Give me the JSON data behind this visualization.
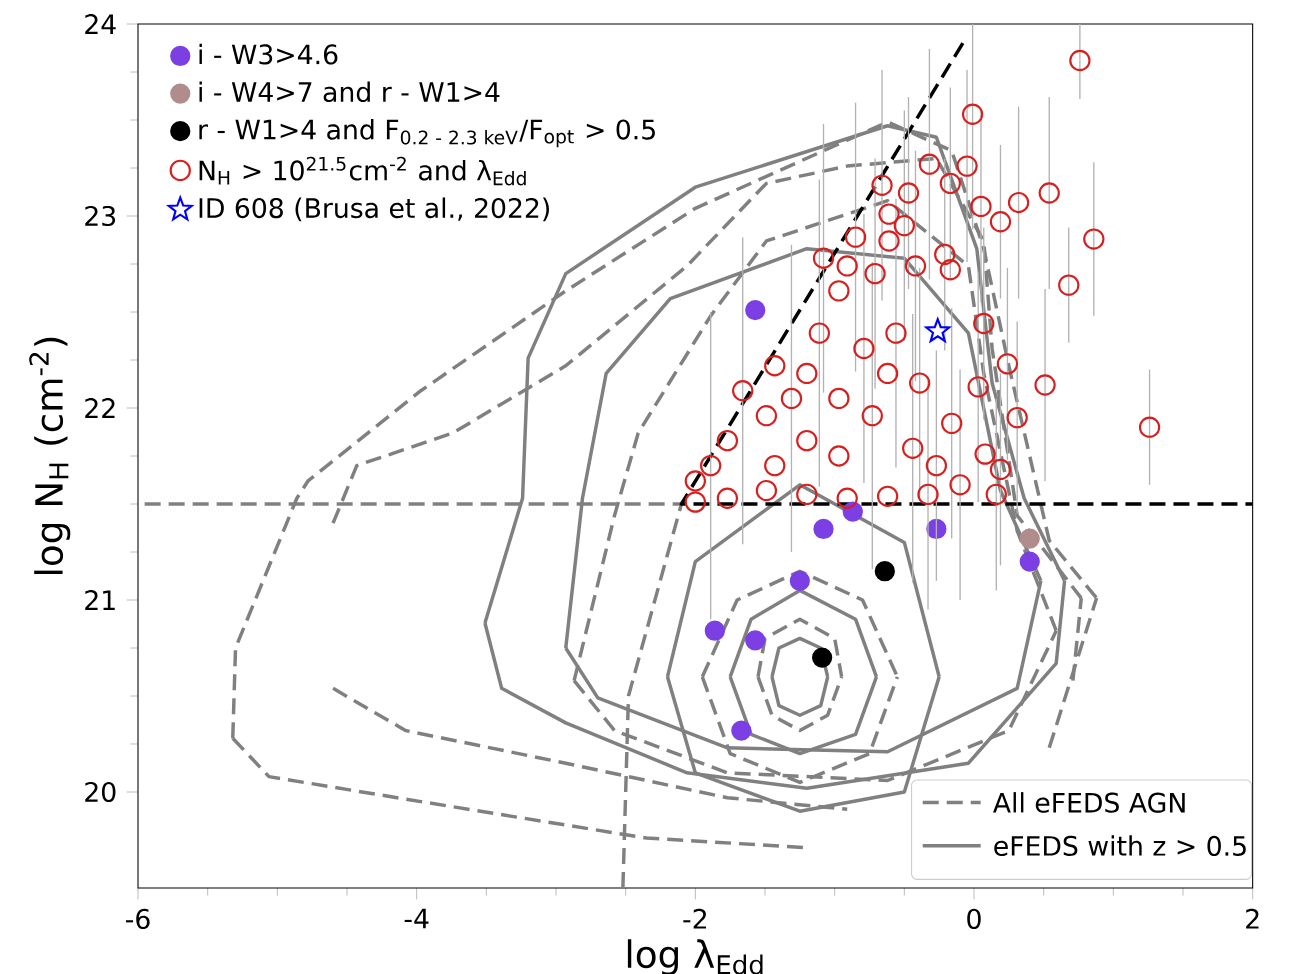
{
  "chart_data": {
    "type": "scatter",
    "xlabel": "log λ$_{Edd}$",
    "ylabel": "log N$_{H}$ (cm$^{-2}$)",
    "xlim": [
      -6,
      2
    ],
    "ylim": [
      19.5,
      24
    ],
    "xticks": [
      -6,
      -4,
      -2,
      0,
      2
    ],
    "yticks": [
      20,
      21,
      22,
      23,
      24
    ],
    "grid": false,
    "legend": "top left",
    "series": [
      {
        "name": "All eFEDS AGN",
        "type": "line",
        "line_style": "dashed",
        "color": "#808080",
        "x": [
          -5.32,
          -5.3,
          -4.86,
          -4.78,
          -3.97,
          -2.93,
          -2.0,
          -0.62,
          -0.16,
          0.07,
          0.25,
          0.54,
          0.88
        ],
        "values": [
          20.28,
          20.75,
          21.53,
          21.62,
          22.09,
          22.61,
          23.04,
          23.49,
          23.34,
          22.83,
          22.22,
          21.31,
          21.01
        ]
      },
      {
        "type": "line",
        "line_style": "dashed",
        "color": "#808080",
        "x": [
          -5.32,
          -5.06,
          -3.97,
          -2.35,
          -1.2,
          -0.33,
          0.54,
          0.88
        ],
        "values": [
          20.28,
          20.08,
          19.95,
          19.76,
          19.71,
          null,
          20.23,
          21.01
        ]
      },
      {
        "type": "line",
        "line_style": "dashed",
        "color": "#808080",
        "x": [
          -4.6,
          -4.43,
          -3.74,
          -2.93,
          -2.06,
          -1.49,
          -0.91,
          -0.27,
          0.07,
          0.13,
          0.31,
          0.77
        ],
        "values": [
          21.4,
          21.7,
          21.87,
          22.22,
          22.74,
          23.17,
          23.26,
          23.3,
          22.87,
          22.31,
          21.44,
          21.01
        ]
      },
      {
        "type": "line",
        "line_style": "dashed",
        "color": "#808080",
        "x": [
          -4.6,
          -4.08,
          -2.93,
          -1.77,
          -0.91,
          -0.04,
          0.71,
          0.77
        ],
        "values": [
          20.54,
          20.32,
          20.15,
          19.97,
          19.91,
          null,
          20.58,
          21.01
        ]
      },
      {
        "type": "line",
        "line_style": "dashed",
        "color": "#808080",
        "x": [
          -2.87,
          -2.58,
          -2.41,
          -1.89,
          -1.49,
          -0.62,
          -0.04,
          0.07,
          0.31,
          0.59
        ],
        "values": [
          20.58,
          21.44,
          21.87,
          22.48,
          22.87,
          23.08,
          22.74,
          22.18,
          21.36,
          20.84
        ]
      },
      {
        "type": "line",
        "line_style": "dashed",
        "color": "#808080",
        "x": [
          -2.87,
          -2.58,
          -1.77,
          -0.62,
          0.25,
          0.59
        ],
        "values": [
          20.58,
          20.32,
          20.1,
          20.06,
          20.32,
          20.84
        ]
      },
      {
        "type": "line",
        "line_style": "dashed",
        "color": "#808080",
        "x": [
          -1.95,
          -1.7,
          -1.25,
          -0.8,
          -0.55
        ],
        "values": [
          20.6,
          21.0,
          21.15,
          21.0,
          20.6
        ]
      },
      {
        "type": "line",
        "line_style": "dashed",
        "color": "#808080",
        "x": [
          -1.95,
          -1.75,
          -1.25,
          -0.75,
          -0.55
        ],
        "values": [
          20.6,
          20.2,
          20.05,
          20.2,
          20.6
        ]
      },
      {
        "type": "line",
        "line_style": "dashed",
        "color": "#808080",
        "x": [
          -1.55,
          -1.5,
          -1.25,
          -1.0,
          -0.95
        ],
        "values": [
          20.6,
          20.8,
          20.9,
          20.8,
          20.6
        ]
      },
      {
        "type": "line",
        "line_style": "dashed",
        "color": "#808080",
        "x": [
          -1.55,
          -1.45,
          -1.25,
          -1.05,
          -0.95
        ],
        "values": [
          20.6,
          20.4,
          20.32,
          20.4,
          20.6
        ]
      },
      {
        "name": "eFEDS with z > 0.5",
        "type": "line",
        "line_style": "solid",
        "color": "#808080",
        "x": [
          -3.51,
          -3.24,
          -3.2,
          -2.93,
          -2.0,
          -0.62,
          -0.27,
          0.02,
          0.13,
          0.36,
          0.65
        ],
        "values": [
          20.88,
          21.53,
          22.26,
          22.7,
          23.15,
          23.47,
          23.41,
          22.83,
          22.13,
          21.53,
          21.1
        ]
      },
      {
        "type": "line",
        "line_style": "solid",
        "color": "#808080",
        "x": [
          -3.51,
          -3.39,
          -2.93,
          -2.06,
          -1.2,
          -0.04,
          0.59,
          0.65
        ],
        "values": [
          20.88,
          20.54,
          20.36,
          20.1,
          20.02,
          20.15,
          20.67,
          21.1
        ]
      },
      {
        "type": "line",
        "line_style": "solid",
        "color": "#808080",
        "x": [
          -2.93,
          -2.81,
          -2.64,
          -2.18,
          -1.2,
          -0.5,
          -0.04,
          0.19,
          0.48
        ],
        "values": [
          20.75,
          21.53,
          22.18,
          22.57,
          22.83,
          22.78,
          22.39,
          21.57,
          21.1
        ]
      },
      {
        "type": "line",
        "line_style": "solid",
        "color": "#808080",
        "x": [
          -2.93,
          -2.7,
          -1.77,
          -0.62,
          0.31,
          0.48
        ],
        "values": [
          20.75,
          20.49,
          20.23,
          20.21,
          20.54,
          21.1
        ]
      },
      {
        "type": "line",
        "line_style": "solid",
        "color": "#808080",
        "x": [
          -2.2,
          -2.0,
          -1.25,
          -0.5,
          -0.25
        ],
        "values": [
          20.6,
          21.2,
          21.6,
          21.3,
          20.6
        ]
      },
      {
        "type": "line",
        "line_style": "solid",
        "color": "#808080",
        "x": [
          -2.2,
          -2.0,
          -1.25,
          -0.5,
          -0.25
        ],
        "values": [
          20.6,
          20.1,
          19.9,
          20.0,
          20.6
        ]
      },
      {
        "type": "line",
        "line_style": "solid",
        "color": "#808080",
        "x": [
          -1.75,
          -1.6,
          -1.25,
          -0.85,
          -0.7
        ],
        "values": [
          20.6,
          20.9,
          21.05,
          20.9,
          20.6
        ]
      },
      {
        "type": "line",
        "line_style": "solid",
        "color": "#808080",
        "x": [
          -1.75,
          -1.6,
          -1.25,
          -0.85,
          -0.7
        ],
        "values": [
          20.6,
          20.3,
          20.2,
          20.3,
          20.6
        ]
      },
      {
        "type": "line",
        "line_style": "solid",
        "color": "#808080",
        "x": [
          -1.45,
          -1.4,
          -1.25,
          -1.1,
          -1.05
        ],
        "values": [
          20.6,
          20.75,
          20.8,
          20.75,
          20.6
        ]
      },
      {
        "type": "line",
        "line_style": "solid",
        "color": "#808080",
        "x": [
          -1.45,
          -1.4,
          -1.25,
          -1.1,
          -1.05
        ],
        "values": [
          20.6,
          20.45,
          20.4,
          20.45,
          20.6
        ]
      },
      {
        "type": "line",
        "line_style": "dashed",
        "color": "#808080",
        "x": [
          -2.52,
          -2.48,
          -2.1,
          -6
        ],
        "values": [
          19.5,
          20.5,
          21.5,
          21.5
        ]
      },
      {
        "type": "line",
        "line_style": "dashed",
        "color": "#000000",
        "x": [
          -0.08,
          -2.1,
          2.0
        ],
        "values": [
          23.9,
          21.5,
          21.5
        ]
      },
      {
        "name": "i - W3>4.6",
        "marker": "circle",
        "color": "#7b3fe4",
        "x": [
          -1.57,
          -1.08,
          -0.87,
          -0.27,
          -1.25,
          -1.86,
          -1.57,
          -1.67,
          0.4
        ],
        "values": [
          22.51,
          21.37,
          21.46,
          21.37,
          21.1,
          20.84,
          20.79,
          20.32,
          21.2
        ]
      },
      {
        "name": "i - W4>7 and r - W1>4",
        "marker": "circle",
        "color": "#b08c8c",
        "x": [
          0.4
        ],
        "values": [
          21.32
        ]
      },
      {
        "name": "r - W1>4 and F$_{0.2 - 2.3 keV}$/F$_{opt}$ > 0.5",
        "marker": "circle",
        "color": "#000000",
        "x": [
          -0.64,
          -1.09
        ],
        "values": [
          21.15,
          20.7
        ]
      },
      {
        "name": "N$_{H}$ > 10$^{21.5}$cm$^{-2}$ and λ$_{Edd}$",
        "marker": "circle",
        "color": "#d62020",
        "x": [
          0.76,
          -0.01,
          0.54,
          0.86,
          0.68,
          0.51,
          1.26,
          0.32,
          0.19,
          0.05,
          -0.05,
          -0.32,
          -0.17,
          -0.47,
          -0.66,
          -0.61,
          -0.61,
          -0.21,
          -0.42,
          -0.71,
          -0.91,
          -0.17,
          0.07,
          0.24,
          0.03,
          0.31,
          0.08,
          0.19,
          0.16,
          -0.1,
          -0.16,
          -0.39,
          -0.56,
          -0.79,
          -0.97,
          -1.11,
          -1.2,
          -1.31,
          -1.43,
          -1.49,
          -1.66,
          -1.77,
          -1.89,
          -2.0,
          -2.0,
          -1.77,
          -1.49,
          -1.2,
          -0.91,
          -0.62,
          -0.33,
          -0.97,
          -1.2,
          -0.73,
          -0.62,
          -0.97,
          -1.43,
          -0.44,
          -0.27,
          -1.08,
          -0.85,
          -0.5
        ],
        "values": [
          23.81,
          23.53,
          23.12,
          22.88,
          22.64,
          22.12,
          21.9,
          23.07,
          22.97,
          23.05,
          23.26,
          23.27,
          23.17,
          23.12,
          23.16,
          23.01,
          22.87,
          22.8,
          22.74,
          22.7,
          22.74,
          22.72,
          22.44,
          22.23,
          22.11,
          21.95,
          21.76,
          21.68,
          21.55,
          21.6,
          21.92,
          22.13,
          22.39,
          22.31,
          22.61,
          22.39,
          22.18,
          22.05,
          22.22,
          21.96,
          22.09,
          21.83,
          21.7,
          21.62,
          21.51,
          21.53,
          21.57,
          21.55,
          21.53,
          21.54,
          21.55,
          21.75,
          21.83,
          21.96,
          22.18,
          22.05,
          21.7,
          21.79,
          21.7,
          22.78,
          22.89,
          22.95
        ],
        "errors": [
          0.2,
          0.6,
          0.5,
          0.4,
          0.3,
          0.5,
          0.3,
          0.5,
          0.4,
          0.5,
          0.5,
          0.6,
          0.5,
          0.5,
          0.6,
          null,
          null,
          0.5,
          0.6,
          0.6,
          null,
          null,
          0.5,
          0.5,
          0.6,
          0.5,
          null,
          0.5,
          0.5,
          0.6,
          0.6,
          0.6,
          0.7,
          0.7,
          null,
          0.8,
          null,
          0.8,
          null,
          null,
          0.8,
          null,
          0.8,
          null,
          null,
          null,
          null,
          null,
          null,
          null,
          0.6,
          null,
          null,
          0.8,
          null,
          null,
          null,
          0.7,
          0.6,
          0.7,
          0.7,
          0.6
        ]
      },
      {
        "name": "ID 608 (Brusa et al., 2022)",
        "marker": "star",
        "color": "#0000ff",
        "x": [
          -0.26
        ],
        "values": [
          22.4
        ]
      }
    ]
  }
}
